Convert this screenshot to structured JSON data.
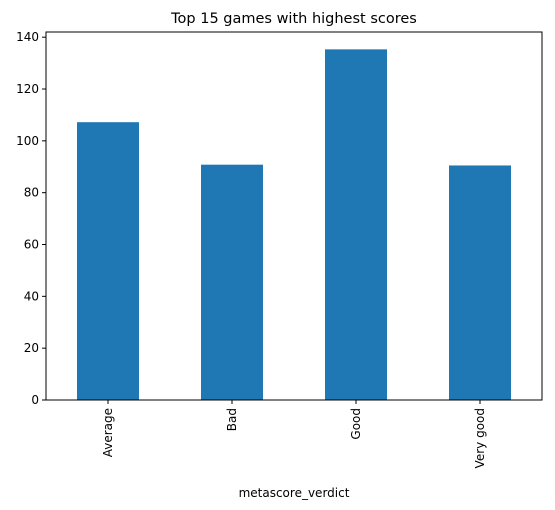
{
  "chart_data": {
    "type": "bar",
    "title": "Top 15 games with highest scores",
    "xlabel": "metascore_verdict",
    "ylabel": "",
    "categories": [
      "Average",
      "Bad",
      "Good",
      "Very good"
    ],
    "values": [
      107.2,
      90.8,
      135.3,
      90.5
    ],
    "yticks": [
      0,
      20,
      40,
      60,
      80,
      100,
      120,
      140
    ],
    "ylim": [
      0,
      142
    ],
    "bar_color": "#1f77b4",
    "grid": false,
    "legend": "none"
  }
}
